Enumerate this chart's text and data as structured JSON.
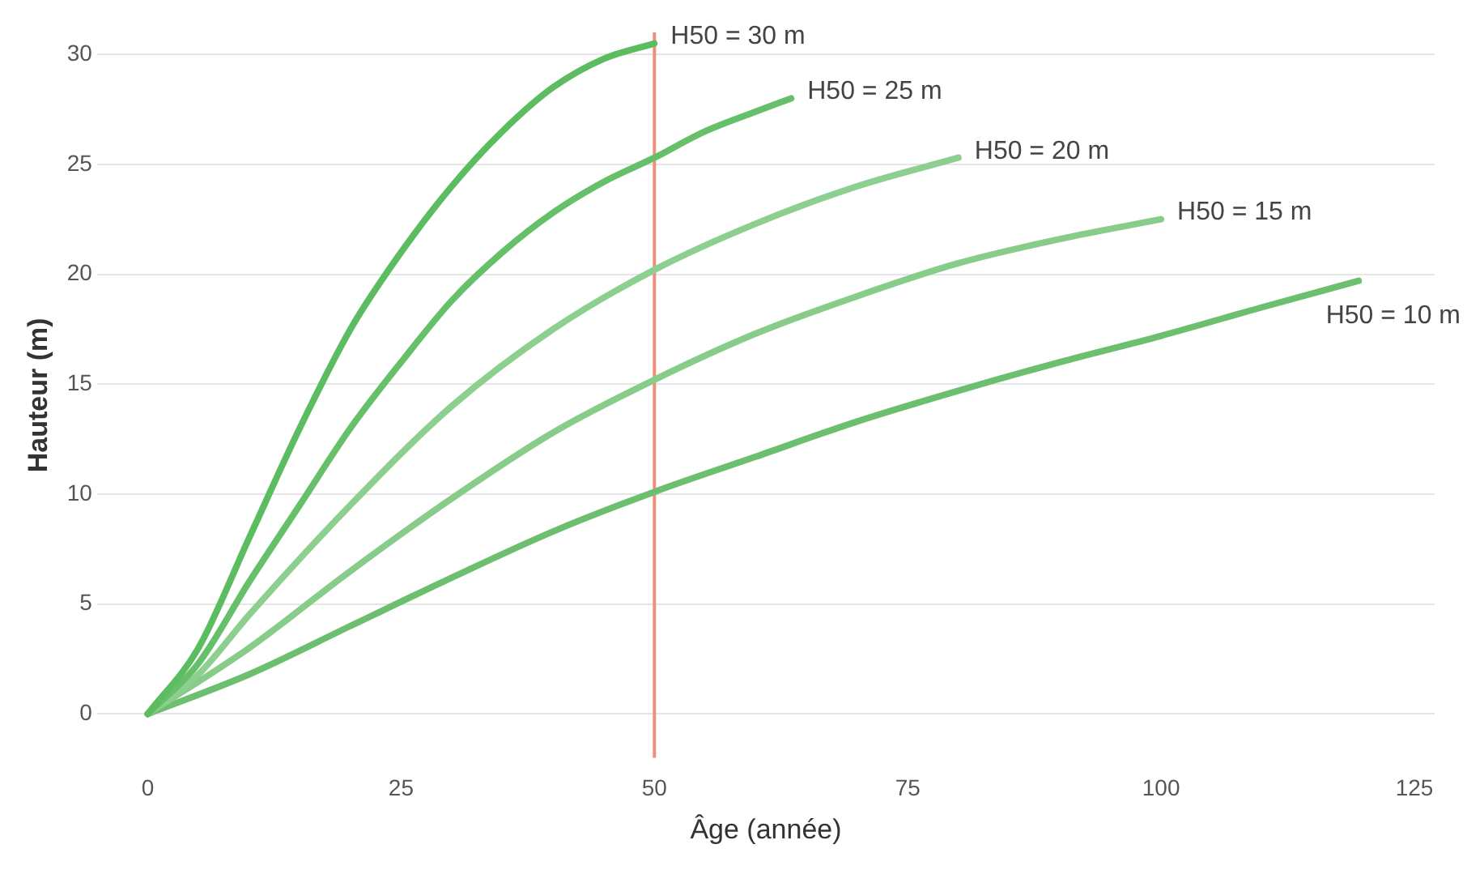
{
  "chart_data": {
    "type": "line",
    "xlabel": "Âge (année)",
    "ylabel": "Hauteur (m)",
    "xlim": [
      -5,
      127
    ],
    "ylim": [
      -2,
      31
    ],
    "xticks": [
      0,
      25,
      50,
      75,
      100,
      125
    ],
    "yticks": [
      0,
      5,
      10,
      15,
      20,
      25,
      30
    ],
    "grid": "y",
    "legend": false,
    "marker": "none",
    "line_style": "solid",
    "ref_lines": [
      {
        "axis": "x",
        "value": 50,
        "color": "#f0907a"
      }
    ],
    "series": [
      {
        "name": "H50 = 30 m",
        "color": "#5cbd60",
        "x": [
          0,
          5,
          10,
          15,
          20,
          25,
          30,
          35,
          40,
          45,
          50
        ],
        "values": [
          0,
          3,
          8,
          13,
          17.5,
          21,
          24,
          26.5,
          28.5,
          29.8,
          30.5
        ]
      },
      {
        "name": "H50 = 25 m",
        "color": "#66c06a",
        "x": [
          0,
          5,
          10,
          15,
          20,
          25,
          30,
          35,
          40,
          45,
          50,
          55,
          60,
          63.5
        ],
        "values": [
          0,
          2.3,
          6,
          9.5,
          13,
          16,
          18.8,
          21,
          22.8,
          24.2,
          25.3,
          26.5,
          27.4,
          28
        ]
      },
      {
        "name": "H50 = 20 m",
        "color": "#8ccf8e",
        "x": [
          0,
          5,
          10,
          20,
          30,
          40,
          50,
          60,
          70,
          80
        ],
        "values": [
          0,
          1.8,
          4.5,
          9.5,
          14,
          17.5,
          20.2,
          22.3,
          24,
          25.3
        ]
      },
      {
        "name": "H50 = 15 m",
        "color": "#88cc8a",
        "x": [
          0,
          10,
          20,
          30,
          40,
          50,
          60,
          70,
          80,
          90,
          100
        ],
        "values": [
          0,
          3,
          6.5,
          9.8,
          12.8,
          15.2,
          17.3,
          19,
          20.5,
          21.6,
          22.5
        ]
      },
      {
        "name": "H50 = 10 m",
        "color": "#6cbf6e",
        "x": [
          0,
          10,
          20,
          30,
          40,
          50,
          60,
          70,
          80,
          90,
          100,
          110,
          119.5
        ],
        "values": [
          0,
          1.8,
          4,
          6.2,
          8.3,
          10.1,
          11.7,
          13.3,
          14.7,
          16,
          17.2,
          18.5,
          19.7
        ]
      }
    ]
  }
}
